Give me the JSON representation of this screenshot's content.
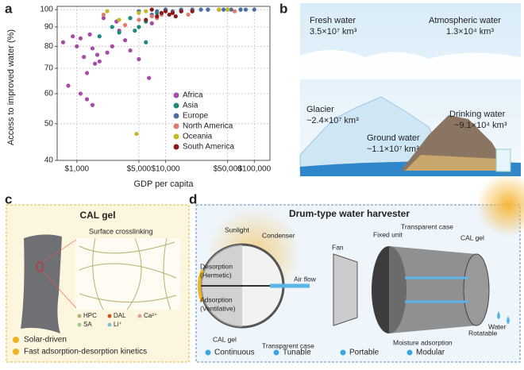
{
  "chart_data": {
    "type": "scatter",
    "panel_label": "a",
    "xlabel": "GDP per capita",
    "ylabel": "Access to improved water (%)",
    "xscale": "log",
    "yscale": "log",
    "grid": true,
    "legend": "lower right",
    "xlim": [
      600,
      150000
    ],
    "ylim": [
      40,
      102
    ],
    "xticks": [
      {
        "value": 1000,
        "label": "$1,000"
      },
      {
        "value": 5000,
        "label": "$5,000"
      },
      {
        "value": 10000,
        "label": "$10,000"
      },
      {
        "value": 50000,
        "label": "$50,000"
      },
      {
        "value": 100000,
        "label": "$100,000"
      }
    ],
    "yticks": [
      40,
      50,
      60,
      70,
      80,
      90,
      100
    ],
    "series": [
      {
        "name": "Africa",
        "color": "#a64ca6",
        "x": [
          700,
          900,
          1000,
          1100,
          1200,
          1300,
          1400,
          1500,
          1600,
          1700,
          1800,
          2000,
          2200,
          2500,
          1100,
          800,
          1500,
          1300,
          3000,
          3500,
          5000,
          6500,
          4000,
          7000,
          2800
        ],
        "values": [
          82,
          85,
          80,
          84,
          75,
          68,
          86,
          79,
          72,
          76,
          73,
          95,
          77,
          80,
          60,
          63,
          56,
          58,
          88,
          83,
          74,
          66,
          78,
          92,
          93
        ]
      },
      {
        "name": "Asia",
        "color": "#1a8a7a",
        "x": [
          1800,
          2500,
          3000,
          4000,
          5000,
          6000,
          8000,
          10000,
          15000,
          20000,
          30000,
          50000,
          70000,
          6000,
          4500
        ],
        "values": [
          85,
          90,
          87,
          95,
          90,
          93,
          98,
          100,
          99,
          100,
          100,
          100,
          100,
          82,
          88
        ]
      },
      {
        "name": "Europe",
        "color": "#4a6fa5",
        "x": [
          5000,
          8000,
          10000,
          15000,
          20000,
          25000,
          30000,
          40000,
          45000,
          55000,
          70000,
          80000,
          100000,
          12000,
          7000
        ],
        "values": [
          99,
          99,
          100,
          100,
          100,
          100,
          100,
          100,
          100,
          100,
          100,
          100,
          100,
          99,
          97
        ]
      },
      {
        "name": "North America",
        "color": "#e07a6a",
        "x": [
          2000,
          3500,
          5000,
          7000,
          8000,
          9000,
          12000,
          15000,
          20000,
          40000,
          60000,
          18000
        ],
        "values": [
          97,
          91,
          94,
          96,
          95,
          97,
          98,
          99,
          99,
          100,
          99,
          97
        ]
      },
      {
        "name": "Oceania",
        "color": "#c8b820",
        "x": [
          4700,
          3000,
          5000,
          6000,
          40000,
          50000,
          2200
        ],
        "values": [
          47,
          94,
          98,
          99,
          100,
          100,
          99
        ]
      },
      {
        "name": "South America",
        "color": "#8b1a1a",
        "x": [
          6000,
          8000,
          9000,
          10000,
          12000,
          15000,
          20000,
          7000,
          11000,
          13000
        ],
        "values": [
          94,
          96,
          98,
          99,
          98,
          99,
          99,
          100,
          97,
          96
        ]
      }
    ]
  },
  "panel_b": {
    "label": "b",
    "fresh": "Fresh water",
    "fresh_v": "3.5×10⁷ km³",
    "atmo": "Atmospheric water",
    "atmo_v": "1.3×10⁴ km³",
    "glacier": "Glacier",
    "glacier_v": "~2.4×10⁷ km³",
    "ground": "Ground water",
    "ground_v": "~1.1×10⁷ km³",
    "drink": "Drinking water",
    "drink_v": "~9.1×10⁴ km³"
  },
  "panel_c": {
    "label": "c",
    "title": "CAL gel",
    "sub": "Surface crosslinking",
    "legend": [
      "HPC",
      "DAL",
      "Ca²⁺",
      "SA",
      "Li⁺"
    ],
    "bullets": [
      "Solar-driven",
      "Fast adsorption-desorption kinetics"
    ]
  },
  "panel_d": {
    "label": "d",
    "title": "Drum-type water harvester",
    "labels": [
      "Sunlight",
      "Condenser",
      "Desorption",
      "(Hermetic)",
      "Adsorption",
      "(Ventilative)",
      "CAL gel",
      "Transparent case",
      "Air flow",
      "Fan",
      "Fixed unit",
      "Transparent case",
      "CAL gel",
      "Moisture adsorption",
      "Rotatable",
      "Water"
    ],
    "bullets": [
      "Continuous",
      "Tunable",
      "Portable",
      "Modular"
    ]
  }
}
